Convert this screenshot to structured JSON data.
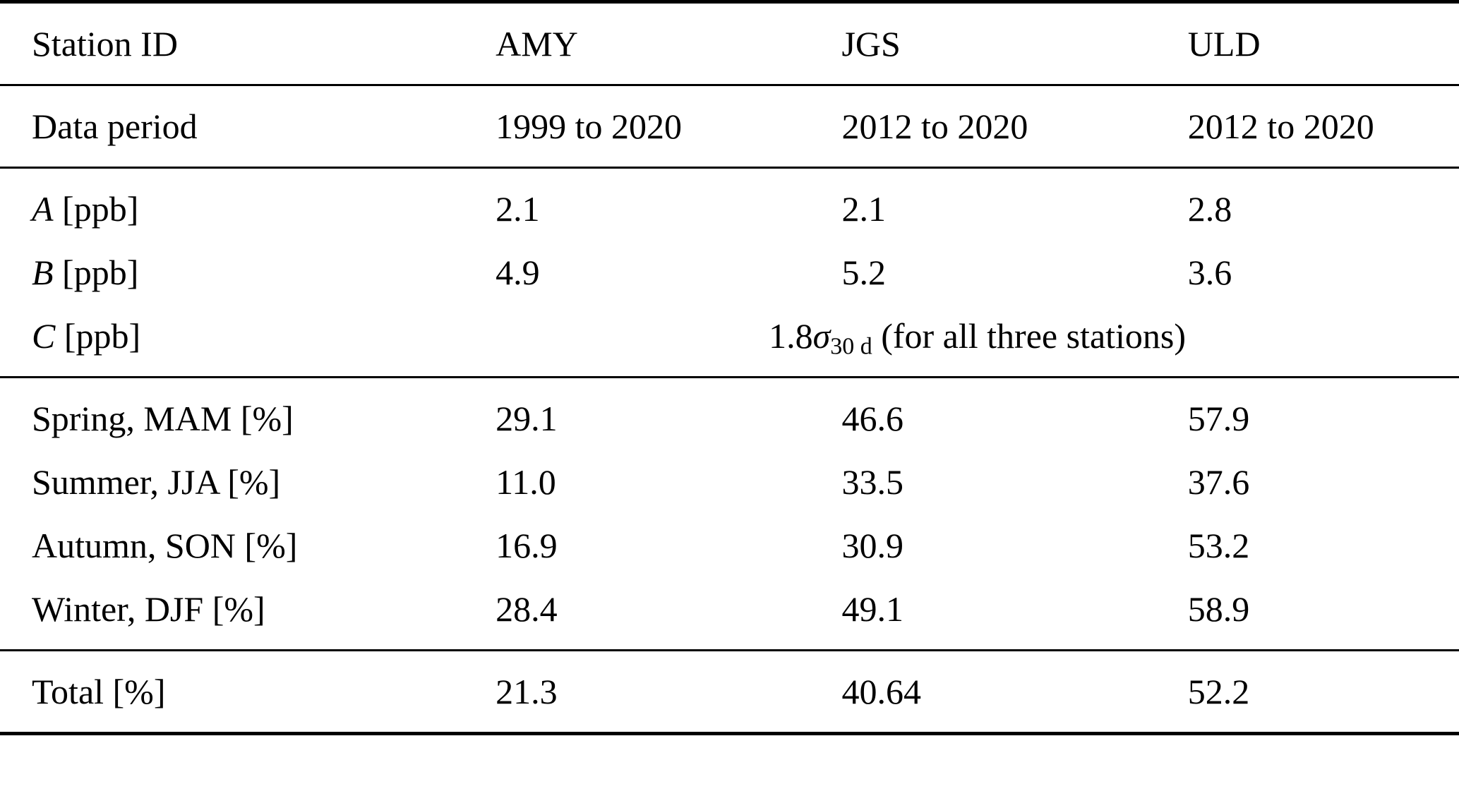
{
  "page": {
    "background": "#ffffff",
    "text_color": "#000000"
  },
  "table": {
    "header": {
      "row_label": "Station ID",
      "stations": [
        "AMY",
        "JGS",
        "ULD"
      ]
    },
    "data_period": {
      "label": "Data period",
      "values": [
        "1999 to 2020",
        "2012 to 2020",
        "2012 to 2020"
      ]
    },
    "parameters": [
      {
        "variable": "A",
        "unit": " [ppb]",
        "values": [
          "2.1",
          "2.1",
          "2.8"
        ]
      },
      {
        "variable": "B",
        "unit": " [ppb]",
        "values": [
          "4.9",
          "5.2",
          "3.6"
        ]
      }
    ],
    "parameter_c": {
      "variable": "C",
      "unit": " [ppb]",
      "coefficient": "1.8",
      "sigma": "σ",
      "subscript": "30 d",
      "note": " (for all three stations)"
    },
    "seasons": [
      {
        "label": "Spring, MAM [%]",
        "values": [
          "29.1",
          "46.6",
          "57.9"
        ]
      },
      {
        "label": "Summer, JJA [%]",
        "values": [
          "11.0",
          "33.5",
          "37.6"
        ]
      },
      {
        "label": "Autumn, SON [%]",
        "values": [
          "16.9",
          "30.9",
          "53.2"
        ]
      },
      {
        "label": "Winter, DJF [%]",
        "values": [
          "28.4",
          "49.1",
          "58.9"
        ]
      }
    ],
    "total": {
      "label": "Total [%]",
      "values": [
        "21.3",
        "40.64",
        "52.2"
      ]
    }
  },
  "chart_data": {
    "type": "table",
    "columns": [
      "Station ID",
      "AMY",
      "JGS",
      "ULD"
    ],
    "rows": [
      [
        "Data period",
        "1999 to 2020",
        "2012 to 2020",
        "2012 to 2020"
      ],
      [
        "A [ppb]",
        "2.1",
        "2.1",
        "2.8"
      ],
      [
        "B [ppb]",
        "4.9",
        "5.2",
        "3.6"
      ],
      [
        "C [ppb]",
        "1.8σ30d (for all three stations)",
        "",
        ""
      ],
      [
        "Spring, MAM [%]",
        "29.1",
        "46.6",
        "57.9"
      ],
      [
        "Summer, JJA [%]",
        "11.0",
        "33.5",
        "37.6"
      ],
      [
        "Autumn, SON [%]",
        "16.9",
        "30.9",
        "53.2"
      ],
      [
        "Winter, DJF [%]",
        "28.4",
        "49.1",
        "58.9"
      ],
      [
        "Total [%]",
        "21.3",
        "40.64",
        "52.2"
      ]
    ]
  }
}
